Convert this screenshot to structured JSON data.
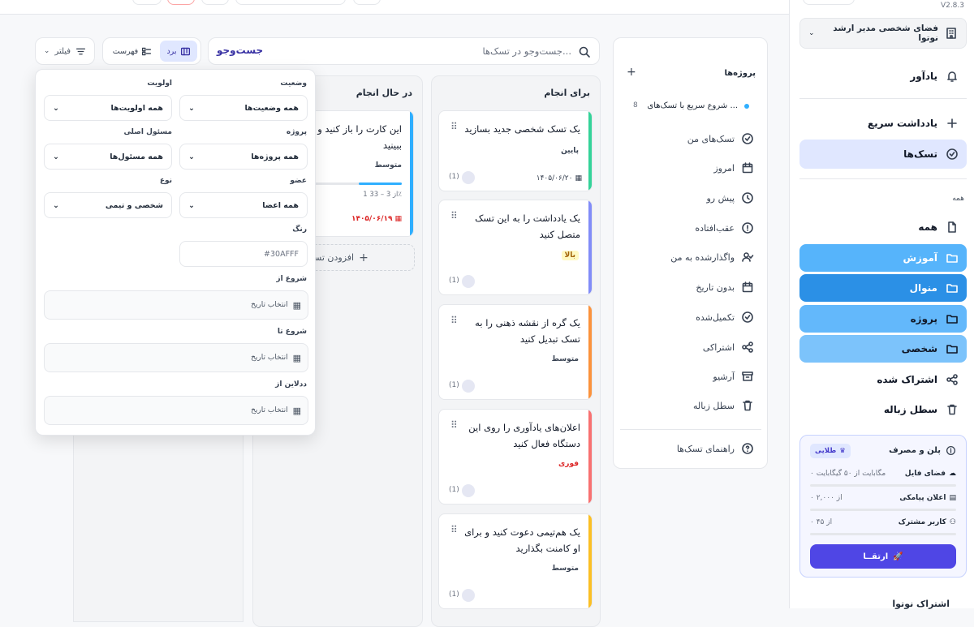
{
  "version": "V2.8.3",
  "workspace": {
    "label": "فضای شخصی مدیر ارشد نوتوا"
  },
  "sidebar": {
    "reminder": "یادآور",
    "quick_note": "یادداشت سریع",
    "tasks": "تسک‌ها",
    "section_all": "همه",
    "all": "همه",
    "folders": [
      "آموزش",
      "منوال",
      "پروژه",
      "شخصی"
    ],
    "shared": "اشتراک شده",
    "trash": "سطل زباله",
    "footer": "اشتراک نوتوا"
  },
  "plan": {
    "title": "پلن و مصرف",
    "badge": "طلایی",
    "items": [
      {
        "label": "فضای فایل",
        "value": "۰ مگابایت از ۵۰ گیگابایت",
        "fraction": 0
      },
      {
        "label": "اعلان پیامکی",
        "value": "۰ از ۲,۰۰۰",
        "fraction": 0
      },
      {
        "label": "کاربر مشترک",
        "value": "۰ از ۴۵",
        "fraction": 0
      }
    ],
    "upgrade": "ارتقــا"
  },
  "projects": {
    "title": "پروژه‌ها",
    "quick_start": "شروع سریع با تسک‌های ...",
    "quick_count": "8",
    "items": [
      "تسک‌های من",
      "امروز",
      "پیش رو",
      "عقب‌افتاده",
      "واگذارشده به من",
      "بدون تاریخ",
      "تکمیل‌شده",
      "اشتراکی",
      "آرشیو",
      "سطل زباله"
    ],
    "guide": "راهنمای تسک‌ها"
  },
  "toolbar": {
    "search_label": "جست‌وجو",
    "search_placeholder": "جست‌وجو در تسک‌ها...",
    "board": "برد",
    "list": "فهرست",
    "filter": "فیلتر"
  },
  "board": {
    "todo": {
      "title": "برای انجام",
      "cards": [
        {
          "title": "یک تسک شخصی جدید بسازید",
          "priority": "پایین",
          "date": "۱۴۰۵/۰۶/۲۰",
          "count": "(1)",
          "color": "#34d399"
        },
        {
          "title": "یک یادداشت را به این تسک متصل کنید",
          "priority": "بالا",
          "date": "",
          "count": "(1)",
          "color": "#818cf8"
        },
        {
          "title": "یک گره از نقشه ذهنی را به تسک تبدیل کنید",
          "priority": "متوسط",
          "date": "",
          "count": "(1)",
          "color": "#fb923c"
        },
        {
          "title": "اعلان‌های یادآوری را روی این دستگاه فعال کنید",
          "priority": "فوری",
          "date": "",
          "count": "(1)",
          "color": "#f87171"
        },
        {
          "title": "یک هم‌تیمی دعوت کنید و برای او کامنت بگذارید",
          "priority": "متوسط",
          "date": "",
          "count": "(1)",
          "color": "#fbbf24"
        }
      ]
    },
    "doing": {
      "title": "در حال انجام",
      "card": {
        "title": "این کارت را باز کنید و جزئیات را ببینید",
        "priority": "متوسط",
        "progress": "1 از 3 – 33٪",
        "progress_fraction": 0.33,
        "date": "۱۴۰۵/۰۶/۱۹"
      },
      "add": "افزودن تسک"
    }
  },
  "filter": {
    "status_label": "وضعیت",
    "status_value": "همه وضعیت‌ها",
    "priority_label": "اولویت",
    "priority_value": "همه اولویت‌ها",
    "project_label": "پروژه",
    "project_value": "همه پروژه‌ها",
    "owner_label": "مسئول اصلی",
    "owner_value": "همه مسئول‌ها",
    "member_label": "عضو",
    "member_value": "همه اعضا",
    "type_label": "نوع",
    "type_value": "شخصی و تیمی",
    "color_label": "رنگ",
    "color_value": "#30AFFF",
    "start_from_label": "شروع از",
    "start_to_label": "شروع تا",
    "deadline_from_label": "ددلاین از",
    "date_placeholder": "انتخاب تاریخ"
  }
}
